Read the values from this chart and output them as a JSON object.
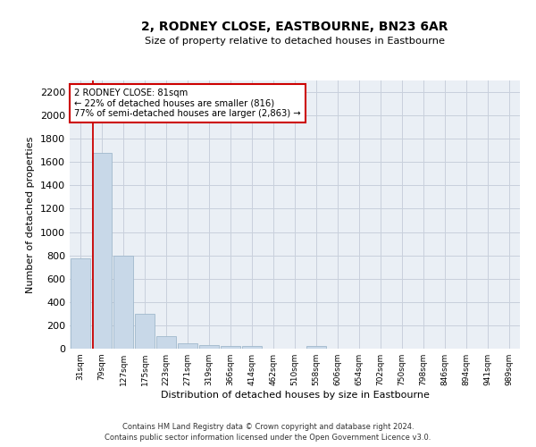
{
  "title": "2, RODNEY CLOSE, EASTBOURNE, BN23 6AR",
  "subtitle": "Size of property relative to detached houses in Eastbourne",
  "xlabel": "Distribution of detached houses by size in Eastbourne",
  "ylabel": "Number of detached properties",
  "bar_color": "#c8d8e8",
  "bar_edge_color": "#a0b8cc",
  "grid_color": "#c8d0dc",
  "background_color": "#eaeff5",
  "categories": [
    "31sqm",
    "79sqm",
    "127sqm",
    "175sqm",
    "223sqm",
    "271sqm",
    "319sqm",
    "366sqm",
    "414sqm",
    "462sqm",
    "510sqm",
    "558sqm",
    "606sqm",
    "654sqm",
    "702sqm",
    "750sqm",
    "798sqm",
    "846sqm",
    "894sqm",
    "941sqm",
    "989sqm"
  ],
  "values": [
    775,
    1680,
    800,
    300,
    110,
    45,
    32,
    25,
    22,
    0,
    0,
    20,
    0,
    0,
    0,
    0,
    0,
    0,
    0,
    0,
    0
  ],
  "property_label": "2 RODNEY CLOSE: 81sqm",
  "annotation_line1": "← 22% of detached houses are smaller (816)",
  "annotation_line2": "77% of semi-detached houses are larger (2,863) →",
  "vline_color": "#cc0000",
  "vline_x": 0.57,
  "ylim": [
    0,
    2300
  ],
  "yticks": [
    0,
    200,
    400,
    600,
    800,
    1000,
    1200,
    1400,
    1600,
    1800,
    2000,
    2200
  ],
  "footnote1": "Contains HM Land Registry data © Crown copyright and database right 2024.",
  "footnote2": "Contains public sector information licensed under the Open Government Licence v3.0."
}
